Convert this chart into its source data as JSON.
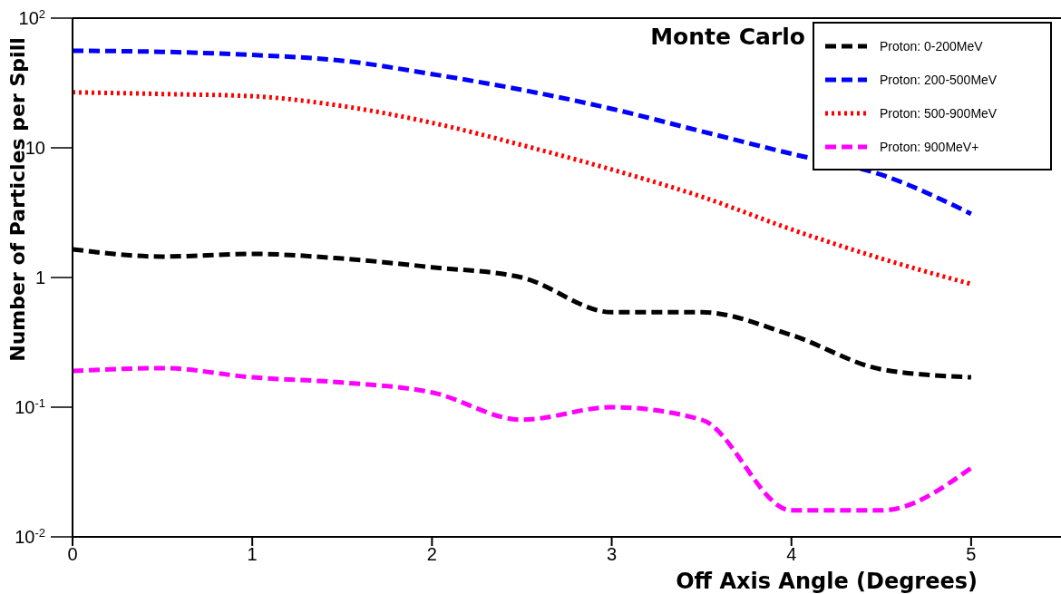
{
  "chart_data": {
    "type": "line",
    "title": "Monte Carlo",
    "xlabel": "Off Axis Angle (Degrees)",
    "ylabel": "Number of Particles per Spill",
    "x": [
      0,
      0.5,
      1,
      1.5,
      2,
      2.5,
      3,
      3.5,
      4,
      4.5,
      5
    ],
    "series": [
      {
        "name": "Proton: 0-200MeV",
        "color": "#000000",
        "line_style": "dashed",
        "values": [
          1.65,
          1.45,
          1.52,
          1.4,
          1.2,
          1.0,
          0.54,
          0.54,
          0.36,
          0.196,
          0.17
        ]
      },
      {
        "name": "Proton: 200-500MeV",
        "color": "#0000ff",
        "line_style": "dashed",
        "values": [
          56,
          55,
          52,
          47,
          37,
          28,
          20,
          13.4,
          9,
          6.2,
          3.1
        ]
      },
      {
        "name": "Proton: 500-900MeV",
        "color": "#ff0000",
        "line_style": "dotted",
        "values": [
          26.8,
          26,
          25,
          21,
          15.6,
          10.5,
          6.8,
          4.2,
          2.35,
          1.4,
          0.89
        ]
      },
      {
        "name": "Proton: 900MeV+",
        "color": "#ff00ff",
        "line_style": "dashed",
        "values": [
          0.19,
          0.2,
          0.17,
          0.155,
          0.13,
          0.08,
          0.1,
          0.08,
          0.016,
          0.016,
          0.034
        ]
      }
    ],
    "log": "y",
    "xlim": [
      0,
      5.5
    ],
    "xticks": [
      0,
      1,
      2,
      3,
      4,
      5
    ],
    "ylim": [
      0.01,
      100
    ],
    "yticks": [
      {
        "value": 0.01,
        "label": "10$^{-2}$"
      },
      {
        "value": 0.1,
        "label": "10$^{-1}$"
      },
      1,
      10,
      {
        "value": 100,
        "label": "10$^{2}$"
      }
    ],
    "grid": false,
    "legend": "top right",
    "marker": "none"
  }
}
